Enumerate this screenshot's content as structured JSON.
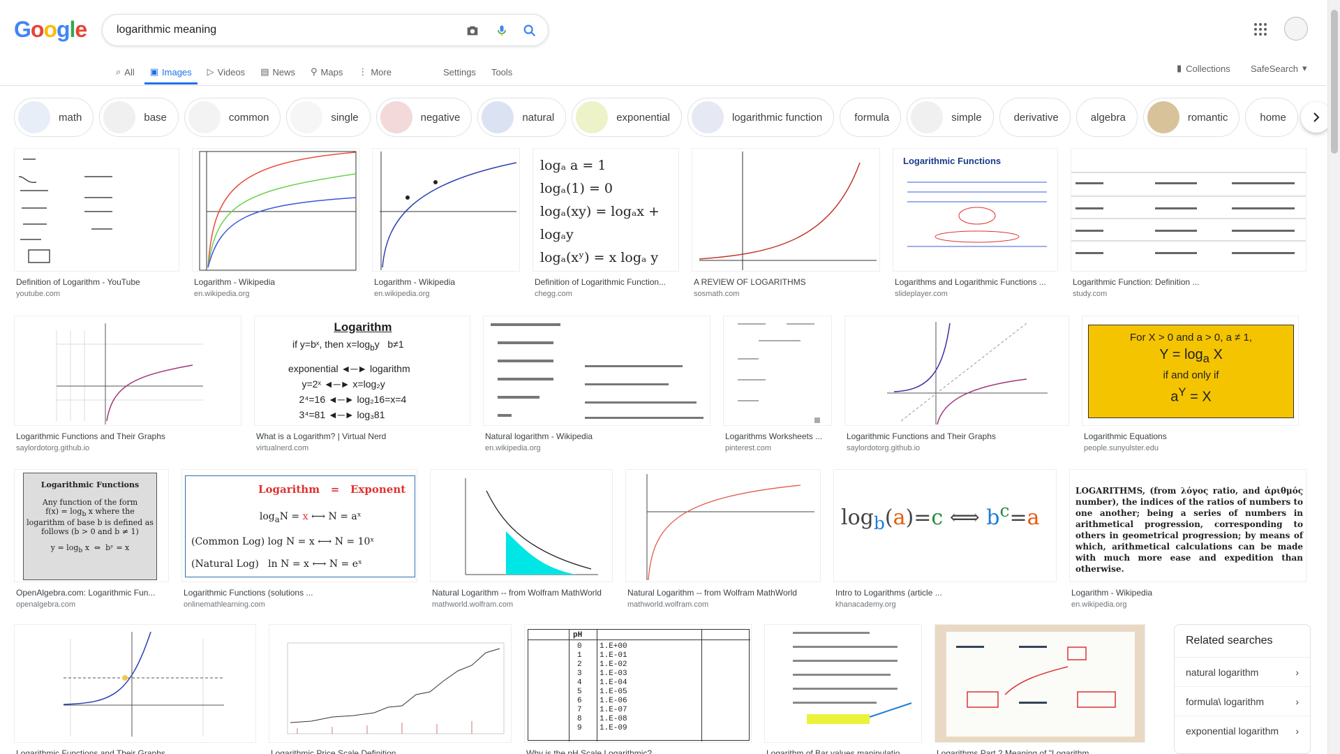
{
  "header": {
    "logo_letters": [
      "G",
      "o",
      "o",
      "g",
      "l",
      "e"
    ],
    "search_value": "logarithmic meaning",
    "tabs": [
      {
        "label": "All"
      },
      {
        "label": "Images"
      },
      {
        "label": "Videos"
      },
      {
        "label": "News"
      },
      {
        "label": "Maps"
      },
      {
        "label": "More"
      }
    ],
    "settings": "Settings",
    "tools": "Tools",
    "collections": "Collections",
    "safesearch": "SafeSearch"
  },
  "chips": [
    "math",
    "base",
    "common",
    "single",
    "negative",
    "natural",
    "exponential",
    "logarithmic function",
    "formula",
    "simple",
    "derivative",
    "algebra",
    "romantic",
    "home"
  ],
  "results": [
    {
      "title": "Definition of Logarithm - YouTube",
      "site": "youtube.com"
    },
    {
      "title": "Logarithm - Wikipedia",
      "site": "en.wikipedia.org"
    },
    {
      "title": "Logarithm - Wikipedia",
      "site": "en.wikipedia.org"
    },
    {
      "title": "Definition of Logarithmic Function...",
      "site": "chegg.com"
    },
    {
      "title": "A REVIEW OF LOGARITHMS",
      "site": "sosmath.com"
    },
    {
      "title": "Logarithms and Logarithmic Functions ...",
      "site": "slideplayer.com"
    },
    {
      "title": "Logarithmic Function: Definition ...",
      "site": "study.com"
    },
    {
      "title": "Logarithmic Functions and Their Graphs",
      "site": "saylordotorg.github.io"
    },
    {
      "title": "What is a Logarithm? | Virtual Nerd",
      "site": "virtualnerd.com"
    },
    {
      "title": "Natural logarithm - Wikipedia",
      "site": "en.wikipedia.org"
    },
    {
      "title": "Logarithms Worksheets ...",
      "site": "pinterest.com"
    },
    {
      "title": "Logarithmic Functions and Their Graphs",
      "site": "saylordotorg.github.io"
    },
    {
      "title": "Logarithmic Equations",
      "site": "people.sunyulster.edu"
    },
    {
      "title": "OpenAlgebra.com: Logarithmic Fun...",
      "site": "openalgebra.com"
    },
    {
      "title": "Logarithmic Functions (solutions ...",
      "site": "onlinemathlearning.com"
    },
    {
      "title": "Natural Logarithm -- from Wolfram MathWorld",
      "site": "mathworld.wolfram.com"
    },
    {
      "title": "Natural Logarithm -- from Wolfram MathWorld",
      "site": "mathworld.wolfram.com"
    },
    {
      "title": "Intro to Logarithms (article ...",
      "site": "khanacademy.org"
    },
    {
      "title": "Logarithm - Wikipedia",
      "site": "en.wikipedia.org"
    },
    {
      "title": "Logarithmic Functions and Their Graphs",
      "site": ""
    },
    {
      "title": "Logarithmic Price Scale Definition",
      "site": ""
    },
    {
      "title": "Why is the pH Scale Logarithmic?",
      "site": ""
    },
    {
      "title": "Logarithm of Bar values manipulatio...",
      "site": ""
    },
    {
      "title": "Logarithms Part 2 Meaning of \"Logarithm",
      "site": ""
    }
  ],
  "thumb_text": {
    "log_equations": "For X > 0 and a > 0, a ≠ 1,",
    "log_equations_2": "Y = log",
    "log_equations_3": "if and only if",
    "log_equations_4": "a",
    "vn_title": "Logarithm",
    "oa_title": "Logarithmic Functions",
    "oml_log": "Logarithm",
    "oml_eq": "=",
    "oml_exp": "Exponent",
    "wiki_old": "LOGARITHMS, (from λόγος ratio, and ἀριθμός number), the indices of the ratios of numbers to one another; being a series of numbers in arithmetical progression, corresponding to others in geometrical progression; by means of which, arithmetical calculations can be made with much more ease and expedition than otherwise.",
    "slide_title": "Logarithmic Functions",
    "khan": "log",
    "chegg_1": "log",
    "ph_header": "pH"
  },
  "related": {
    "title": "Related searches",
    "items": [
      "natural logarithm",
      "formula\\ logarithm",
      "exponential logarithm"
    ]
  },
  "colors": {
    "accent": "#1a73e8",
    "yellow_thumb": "#f5c400"
  }
}
